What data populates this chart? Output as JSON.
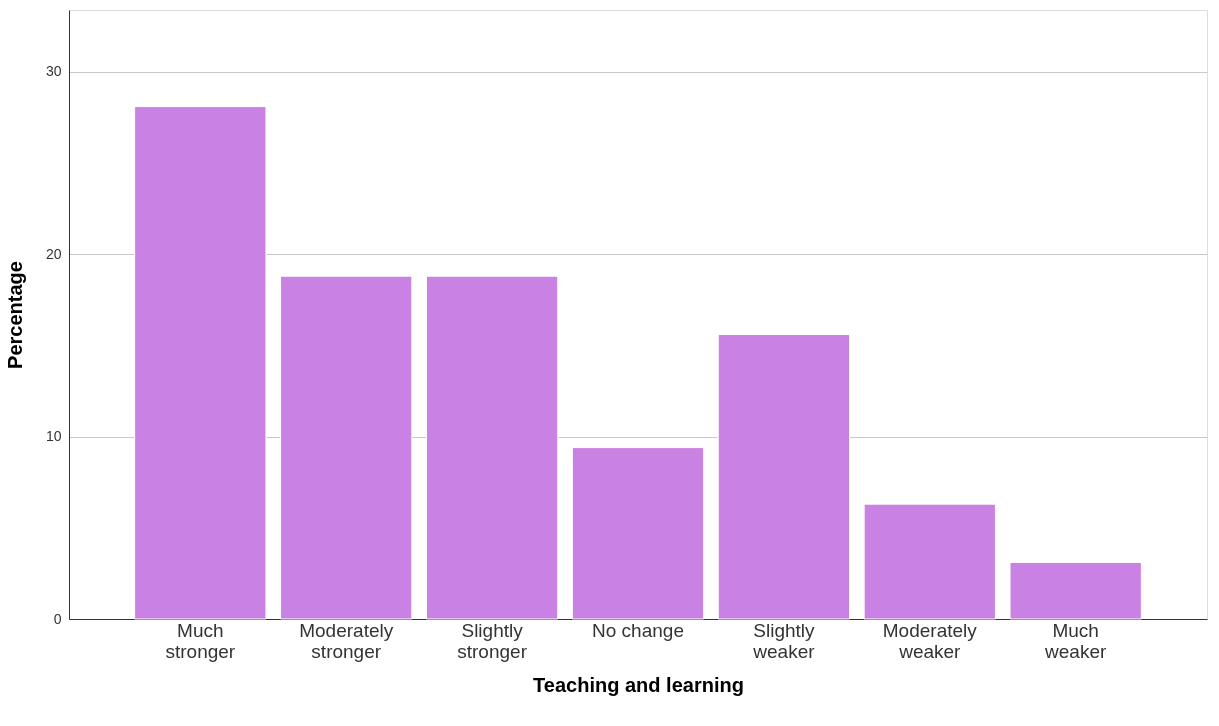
{
  "chart_data": {
    "type": "bar",
    "xlabel": "Teaching and learning",
    "ylabel": "Percentage",
    "categories": [
      "Much\nstronger",
      "Moderately\nstronger",
      "Slightly\nstronger",
      "No change",
      "Slightly\nweaker",
      "Moderately\nweaker",
      "Much\nweaker"
    ],
    "values": [
      28.1,
      18.8,
      18.8,
      9.4,
      15.6,
      6.3,
      3.1
    ],
    "color": "#c981e3",
    "ylim": [
      0,
      33.4
    ],
    "yticks": [
      0,
      10,
      20,
      30
    ],
    "grid": "y"
  }
}
